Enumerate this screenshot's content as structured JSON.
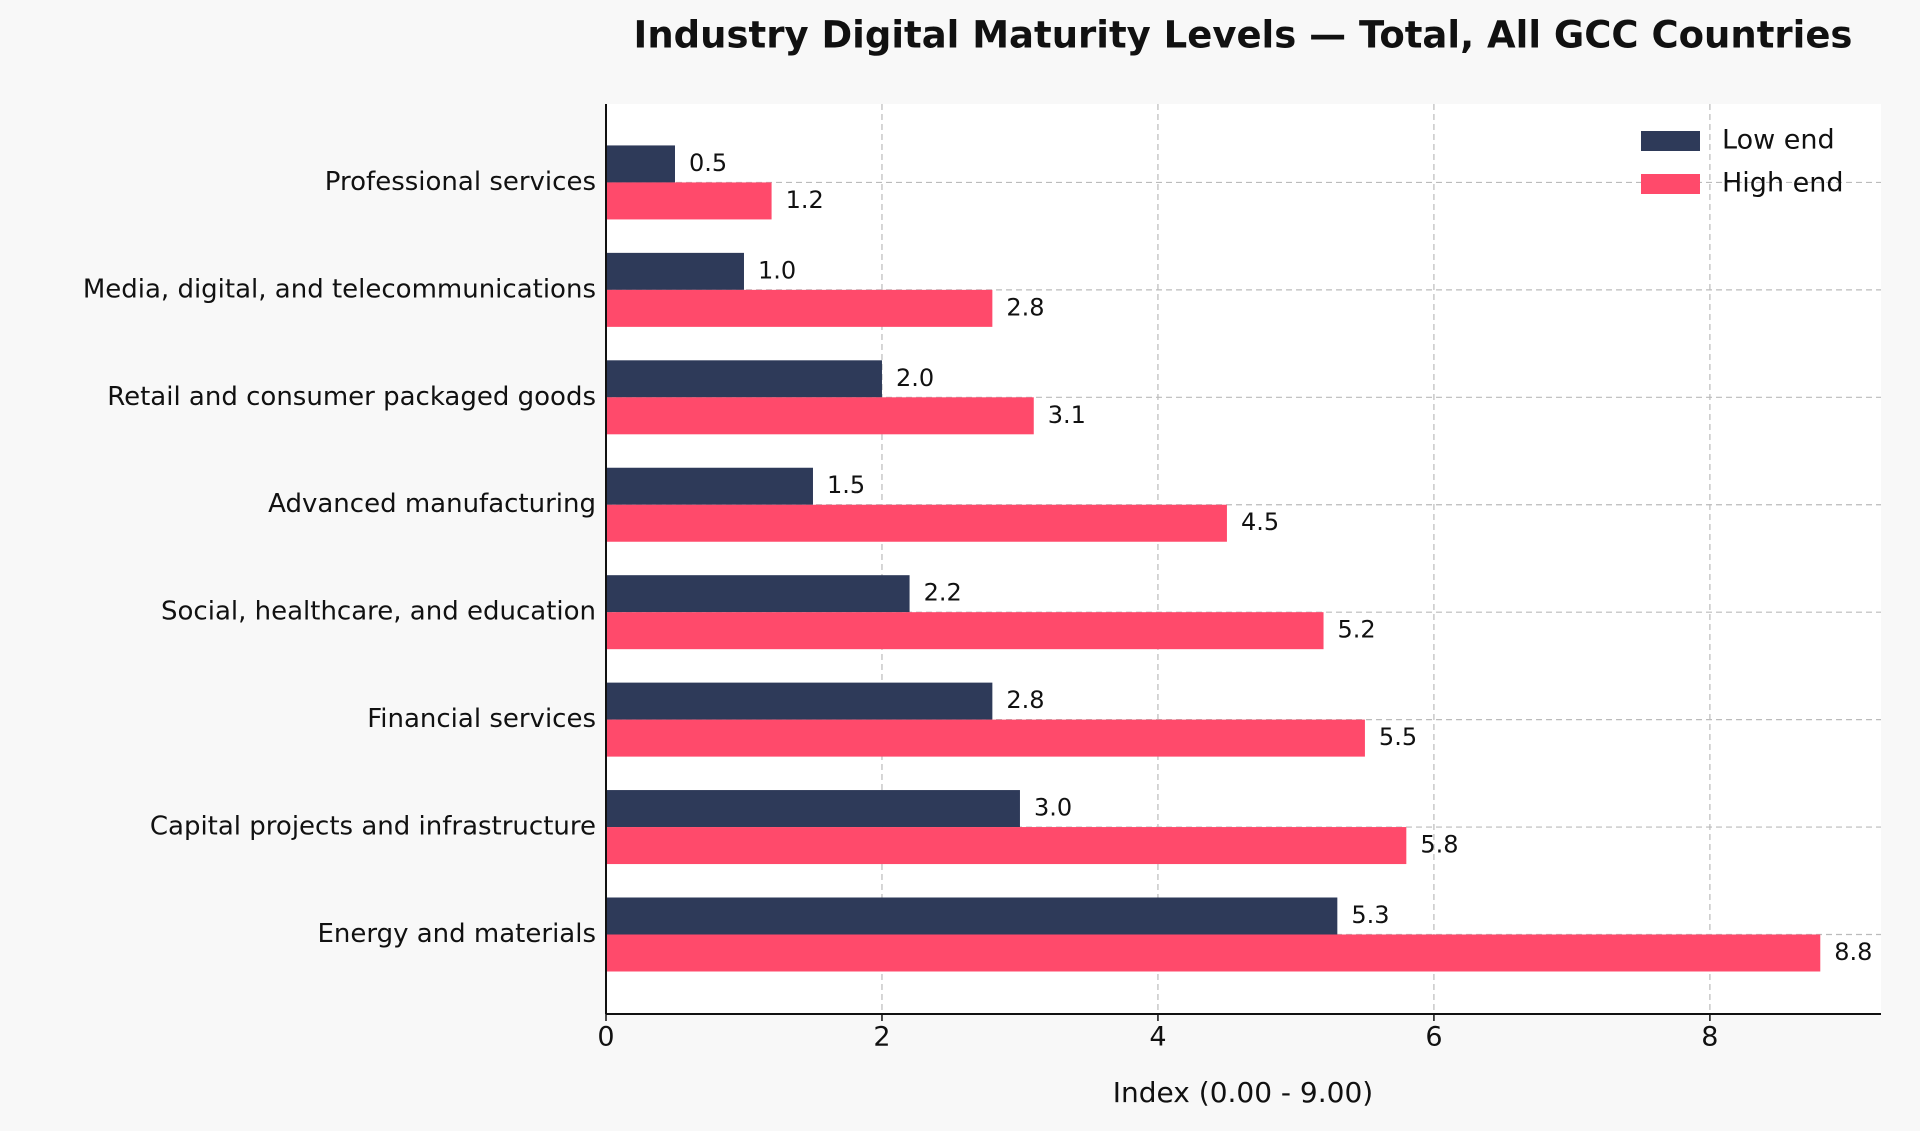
{
  "chart_data": {
    "type": "bar",
    "orientation": "horizontal",
    "title": "Industry Digital Maturity Levels — Total, All GCC Countries",
    "x_label": "Index (0.00 - 9.00)",
    "categories": [
      "Professional services",
      "Media, digital, and telecommunications",
      "Retail and consumer packaged goods",
      "Advanced manufacturing",
      "Social, healthcare, and education",
      "Financial services",
      "Capital projects and infrastructure",
      "Energy and materials"
    ],
    "series": [
      {
        "name": "Low end",
        "color": "#2e3a59",
        "values": [
          0.5,
          1.0,
          2.0,
          1.5,
          2.2,
          2.8,
          3.0,
          5.3
        ],
        "value_labels": [
          "0.5",
          "1.0",
          "2.0",
          "1.5",
          "2.2",
          "2.8",
          "3.0",
          "5.3"
        ]
      },
      {
        "name": "High end",
        "color": "#ff4a6b",
        "values": [
          1.2,
          2.8,
          3.1,
          4.5,
          5.2,
          5.5,
          5.8,
          8.8
        ],
        "value_labels": [
          "1.2",
          "2.8",
          "3.1",
          "4.5",
          "5.2",
          "5.5",
          "5.8",
          "8.8"
        ]
      }
    ],
    "xlim": [
      0,
      9.24
    ],
    "xticks": [
      0,
      2,
      4,
      6,
      8
    ],
    "grid": true,
    "legend": "upper right"
  }
}
